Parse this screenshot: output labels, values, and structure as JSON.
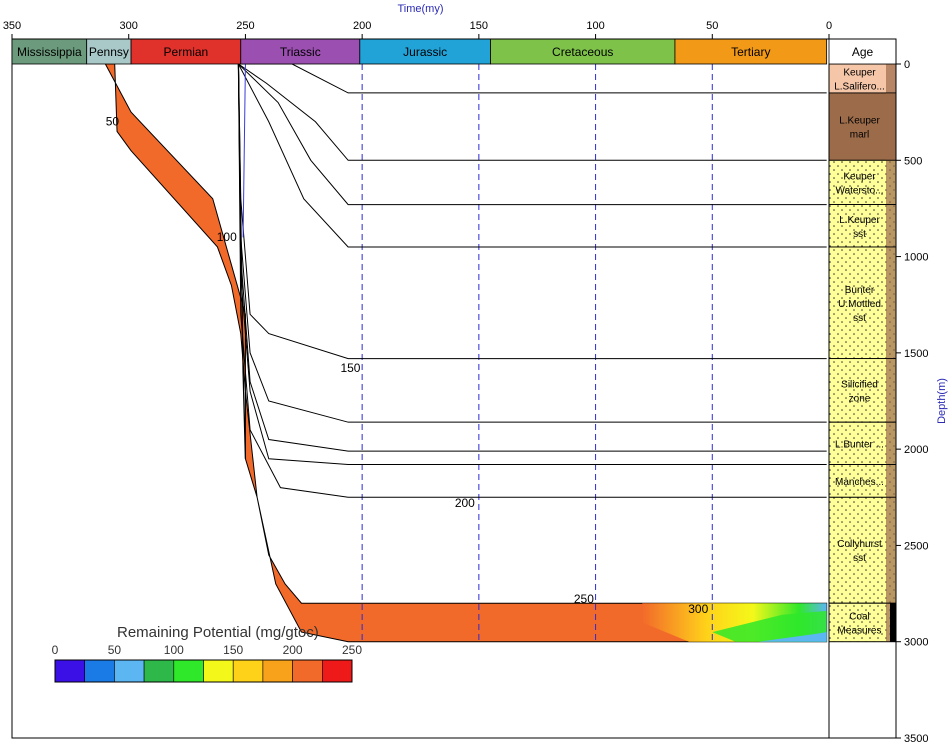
{
  "chart_data": {
    "type": "area",
    "title": "",
    "xlabel": "Time(my)",
    "ylabel": "Depth(m)",
    "xlim": [
      350,
      0
    ],
    "ylim": [
      0,
      3500
    ],
    "x_ticks": [
      "350",
      "300",
      "250",
      "200",
      "150",
      "100",
      "50",
      "0"
    ],
    "y_ticks": [
      "0",
      "500",
      "1000",
      "1500",
      "2000",
      "2500",
      "3000",
      "3500"
    ],
    "periods": [
      {
        "name": "Mississippia",
        "start": 350,
        "end": 318,
        "color": "#6b9a7c"
      },
      {
        "name": "Pennsy",
        "start": 318,
        "end": 299,
        "color": "#a9c9c9"
      },
      {
        "name": "Permian",
        "start": 299,
        "end": 252,
        "color": "#e0312b"
      },
      {
        "name": "Triassic",
        "start": 252,
        "end": 201,
        "color": "#9b4fb1"
      },
      {
        "name": "Jurassic",
        "start": 201,
        "end": 145,
        "color": "#22a3d8"
      },
      {
        "name": "Cretaceous",
        "start": 145,
        "end": 66,
        "color": "#7ec24a"
      },
      {
        "name": "Tertiary",
        "start": 66,
        "end": 1,
        "color": "#f29a17"
      }
    ],
    "age_header": "Age",
    "strat_units": [
      {
        "label1": "Keuper",
        "label2": "L.Salifero...",
        "top": 0,
        "base": 150,
        "color": "#f5c6a8"
      },
      {
        "label1": "L.Keuper",
        "label2": "marl",
        "top": 150,
        "base": 500,
        "color": "#9b6b4a"
      },
      {
        "label1": "Keuper",
        "label2": "Watersto...",
        "top": 500,
        "base": 730,
        "color": "#ffff99"
      },
      {
        "label1": "L.Keuper",
        "label2": "sst",
        "top": 730,
        "base": 950,
        "color": "#ffff99"
      },
      {
        "label1": "Bunter",
        "label2": "U.Mottled",
        "label3": "sst",
        "top": 950,
        "base": 1530,
        "color": "#ffff99"
      },
      {
        "label1": "Silicified",
        "label2": "zone",
        "top": 1530,
        "base": 1860,
        "color": "#ffff99"
      },
      {
        "label1": "L.Bunter ...",
        "label2": "",
        "top": 1860,
        "base": 2080,
        "color": "#ffff99"
      },
      {
        "label1": "Manches...",
        "label2": "",
        "top": 2080,
        "base": 2250,
        "color": "#ffff99"
      },
      {
        "label1": "Collyhurst",
        "label2": "sst",
        "top": 2250,
        "base": 2800,
        "color": "#ffff99"
      },
      {
        "label1": "Coal",
        "label2": "Measures",
        "top": 2800,
        "base": 3000,
        "color": "#ffff99"
      }
    ],
    "burial_curves": [
      {
        "horizon_depth": 150,
        "points": [
          [
            253,
            0
          ],
          [
            252,
            0
          ],
          [
            241,
            0
          ],
          [
            230,
            0
          ],
          [
            206,
            150
          ],
          [
            1,
            150
          ]
        ]
      },
      {
        "horizon_depth": 500,
        "points": [
          [
            253,
            0
          ],
          [
            241,
            100
          ],
          [
            220,
            300
          ],
          [
            206,
            500
          ],
          [
            1,
            500
          ]
        ]
      },
      {
        "horizon_depth": 730,
        "points": [
          [
            253,
            0
          ],
          [
            236,
            200
          ],
          [
            222,
            500
          ],
          [
            206,
            730
          ],
          [
            1,
            730
          ]
        ]
      },
      {
        "horizon_depth": 950,
        "points": [
          [
            253,
            0
          ],
          [
            240,
            300
          ],
          [
            225,
            700
          ],
          [
            206,
            950
          ],
          [
            1,
            950
          ]
        ]
      },
      {
        "horizon_depth": 1530,
        "points": [
          [
            253,
            0
          ],
          [
            252,
            700
          ],
          [
            248,
            1300
          ],
          [
            240,
            1400
          ],
          [
            206,
            1530
          ],
          [
            1,
            1530
          ]
        ]
      },
      {
        "horizon_depth": 1860,
        "points": [
          [
            253,
            0
          ],
          [
            252,
            900
          ],
          [
            248,
            1500
          ],
          [
            240,
            1750
          ],
          [
            206,
            1860
          ],
          [
            1,
            1860
          ]
        ]
      },
      {
        "horizon_depth": 2010,
        "points": [
          [
            253,
            0
          ],
          [
            252,
            1000
          ],
          [
            248,
            1650
          ],
          [
            240,
            1950
          ],
          [
            206,
            2010
          ],
          [
            1,
            2010
          ]
        ]
      },
      {
        "horizon_depth": 2080,
        "points": [
          [
            253,
            0
          ],
          [
            252,
            1100
          ],
          [
            248,
            1700
          ],
          [
            240,
            2050
          ],
          [
            206,
            2080
          ],
          [
            1,
            2080
          ]
        ]
      },
      {
        "horizon_depth": 2250,
        "points": [
          [
            253,
            0
          ],
          [
            252,
            1300
          ],
          [
            248,
            1900
          ],
          [
            235,
            2200
          ],
          [
            206,
            2250
          ],
          [
            1,
            2250
          ]
        ]
      }
    ],
    "source_rock": {
      "remaining_potential_ranges": [
        {
          "x_range": [
            315,
            1
          ],
          "depth_top": 2800,
          "depth_base": 3000,
          "value": 210
        }
      ],
      "top_outline": [
        [
          310,
          0
        ],
        [
          299,
          250
        ],
        [
          264,
          700
        ],
        [
          257,
          1000
        ],
        [
          250,
          1300
        ],
        [
          250,
          2050
        ],
        [
          245,
          2250
        ],
        [
          240,
          2550
        ],
        [
          233,
          2700
        ],
        [
          226,
          2800
        ],
        [
          206,
          2800
        ],
        [
          1,
          2800
        ]
      ],
      "base_outline": [
        [
          306,
          0
        ],
        [
          305,
          350
        ],
        [
          299,
          450
        ],
        [
          262,
          950
        ],
        [
          256,
          1150
        ],
        [
          252,
          1400
        ],
        [
          250,
          1700
        ],
        [
          245,
          2250
        ],
        [
          237,
          2700
        ],
        [
          226,
          2950
        ],
        [
          206,
          3000
        ],
        [
          1,
          3000
        ]
      ],
      "low_potential_zone": [
        [
          80,
          2800
        ],
        [
          30,
          2800
        ],
        [
          1,
          2800
        ],
        [
          1,
          3000
        ],
        [
          60,
          3000
        ],
        [
          80,
          2900
        ]
      ]
    },
    "curve_labels": [
      {
        "text": "50",
        "x": 307,
        "depth": 320
      },
      {
        "text": "100",
        "x": 258,
        "depth": 920
      },
      {
        "text": "150",
        "x": 205,
        "depth": 1600
      },
      {
        "text": "200",
        "x": 156,
        "depth": 2300
      },
      {
        "text": "250",
        "x": 105,
        "depth": 2800
      },
      {
        "text": "300",
        "x": 56,
        "depth": 2850
      }
    ],
    "legend": {
      "title": "Remaining Potential (mg/gtoc)",
      "ticks": [
        "0",
        "50",
        "100",
        "150",
        "200",
        "250"
      ],
      "range": [
        0,
        250
      ],
      "colors": [
        "#3b10e6",
        "#1a7ae6",
        "#5cb6f2",
        "#2fb84a",
        "#2fe82a",
        "#f4f81a",
        "#ffd21a",
        "#f7a21a",
        "#f26a2a",
        "#ee1a1a"
      ]
    }
  }
}
